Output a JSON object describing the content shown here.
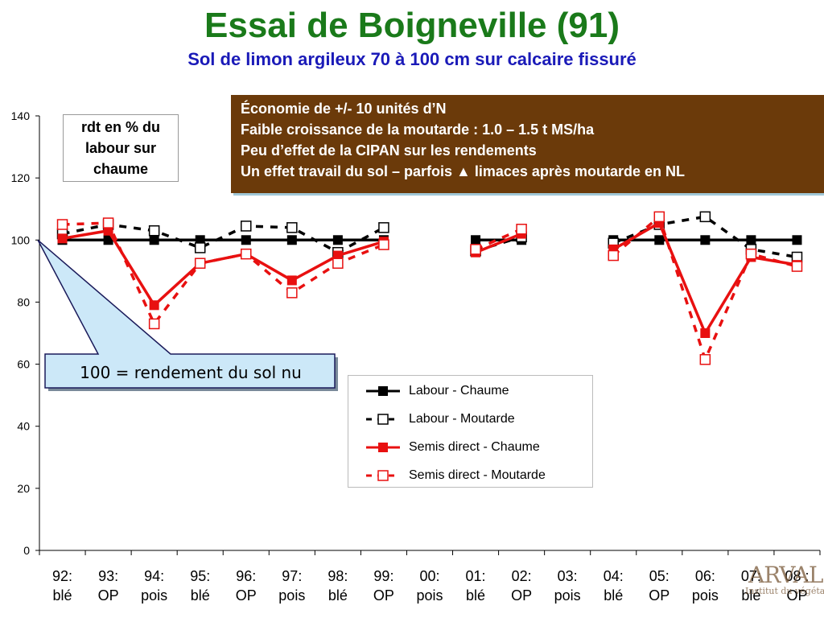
{
  "header": {
    "title": "Essai de Boigneville (91)",
    "subtitle": "Sol de limon argileux 70 à 100 cm sur calcaire fissuré"
  },
  "y_label": [
    "rdt en % du",
    "labour sur",
    "chaume"
  ],
  "info_box": [
    "Économie de +/- 10 unités d’N",
    "Faible croissance de la moutarde : 1.0 – 1.5 t MS/ha",
    "Peu d’effet de la CIPAN sur les rendements",
    "Un effet travail du sol – parfois ▲ limaces après moutarde en NL"
  ],
  "callout": "100 = rendement du sol nu",
  "logo": {
    "text": "ARVALIS",
    "sub": "Institut du végétal"
  },
  "colors": {
    "title": "#1a7a1a",
    "subtitle": "#1a1ab8",
    "info_bg": "#6b3a0a",
    "callout_bg": "#cce8f8",
    "red": "#e81010",
    "black": "#000000"
  },
  "chart_data": {
    "type": "line",
    "categories": [
      [
        "92:",
        "blé"
      ],
      [
        "93:",
        "OP"
      ],
      [
        "94:",
        "pois"
      ],
      [
        "95:",
        "blé"
      ],
      [
        "96:",
        "OP"
      ],
      [
        "97:",
        "pois"
      ],
      [
        "98:",
        "blé"
      ],
      [
        "99:",
        "OP"
      ],
      [
        "00:",
        "pois"
      ],
      [
        "01:",
        "blé"
      ],
      [
        "02:",
        "OP"
      ],
      [
        "03:",
        "pois"
      ],
      [
        "04:",
        "blé"
      ],
      [
        "05:",
        "OP"
      ],
      [
        "06:",
        "pois"
      ],
      [
        "07:",
        "blé"
      ],
      [
        "08 :",
        "OP"
      ]
    ],
    "ylim": [
      0,
      140
    ],
    "yticks": [
      0,
      20,
      40,
      60,
      80,
      100,
      120,
      140
    ],
    "series": [
      {
        "name": "Labour - Chaume",
        "color": "#000000",
        "dashed": false,
        "marker": "filled",
        "values": [
          100,
          100,
          100,
          100,
          100,
          100,
          100,
          100,
          null,
          100,
          100,
          null,
          100,
          100,
          100,
          100,
          100
        ]
      },
      {
        "name": "Labour - Moutarde",
        "color": "#000000",
        "dashed": true,
        "marker": "hollow",
        "values": [
          102,
          105,
          103,
          97.5,
          104.5,
          104,
          96,
          104,
          null,
          96.5,
          101,
          null,
          99,
          105,
          107.5,
          97,
          94.5
        ]
      },
      {
        "name": "Semis direct - Chaume",
        "color": "#e81010",
        "dashed": false,
        "marker": "filled",
        "values": [
          100.5,
          103,
          79,
          92.5,
          95.5,
          87,
          95,
          99.5,
          null,
          96,
          102,
          null,
          97,
          105.5,
          70,
          94.5,
          92
        ]
      },
      {
        "name": "Semis direct - Moutarde",
        "color": "#e81010",
        "dashed": true,
        "marker": "hollow",
        "values": [
          105,
          105.5,
          73,
          92.5,
          95.5,
          83,
          92.5,
          98.5,
          null,
          97,
          103.5,
          null,
          95,
          107.5,
          61.5,
          95.5,
          91.5
        ]
      }
    ],
    "grid": false,
    "legend_position": "bottom-right"
  }
}
